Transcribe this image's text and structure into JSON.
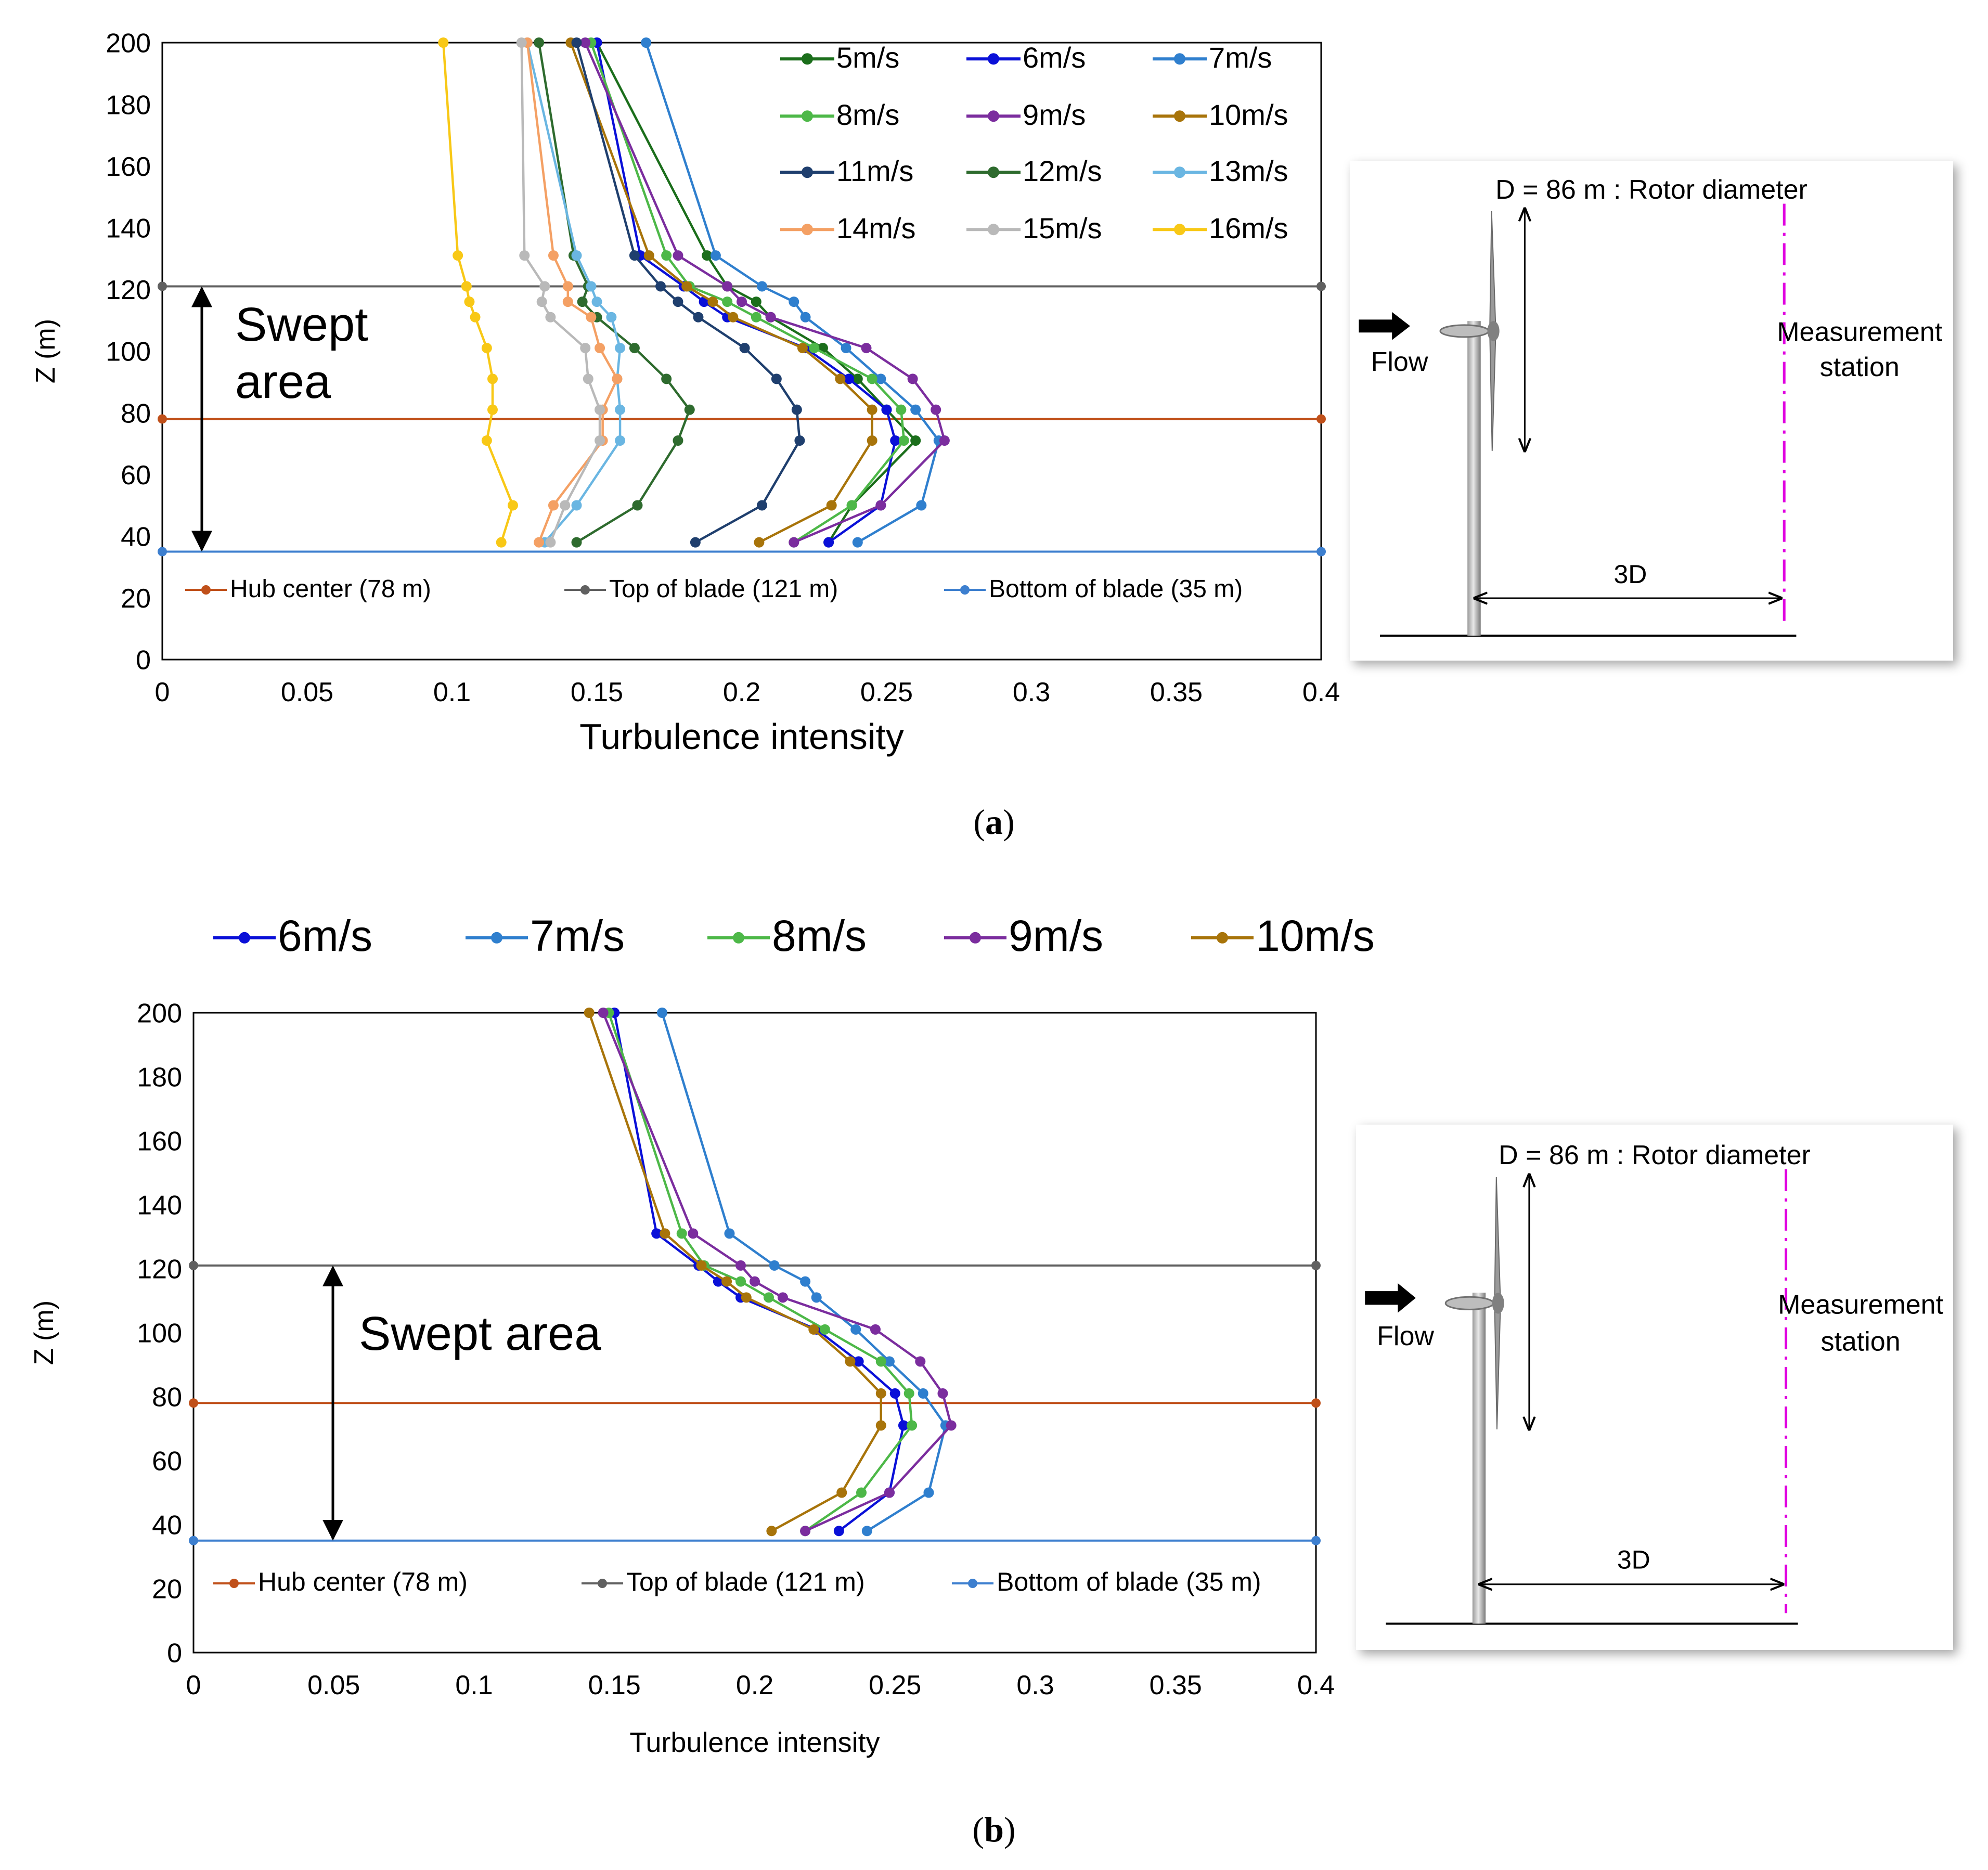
{
  "panels": [
    {
      "label": "a",
      "chart_data": {
        "type": "line",
        "xlabel": "Turbulence intensity",
        "ylabel": "Z (m)",
        "xlim": [
          0,
          0.4
        ],
        "ylim": [
          0,
          200
        ],
        "xticks": [
          "0",
          "0.05",
          "0.1",
          "0.15",
          "0.2",
          "0.25",
          "0.3",
          "0.35",
          "0.4"
        ],
        "yticks": [
          "0",
          "20",
          "40",
          "60",
          "80",
          "100",
          "120",
          "140",
          "160",
          "180",
          "200"
        ],
        "annotation": "Swept area",
        "heights": [
          38,
          50,
          71,
          81,
          91,
          101,
          111,
          116,
          121,
          131,
          200
        ],
        "series": [
          {
            "name": "5m/s",
            "color": "#1b6e1b",
            "values": [
              0.23,
              0.238,
              0.26,
              0.25,
              0.24,
              0.228,
              0.21,
              0.205,
              0.195,
              0.188,
              0.15
            ]
          },
          {
            "name": "6m/s",
            "color": "#0a10d8",
            "values": [
              0.23,
              0.248,
              0.253,
              0.25,
              0.237,
              0.222,
              0.195,
              0.187,
              0.18,
              0.165,
              0.15
            ]
          },
          {
            "name": "7m/s",
            "color": "#2f7fce",
            "values": [
              0.24,
              0.262,
              0.268,
              0.26,
              0.248,
              0.236,
              0.222,
              0.218,
              0.207,
              0.191,
              0.167
            ]
          },
          {
            "name": "8m/s",
            "color": "#4db848",
            "values": [
              0.218,
              0.238,
              0.256,
              0.255,
              0.245,
              0.225,
              0.205,
              0.195,
              0.182,
              0.174,
              0.148
            ]
          },
          {
            "name": "9m/s",
            "color": "#7b2d9e",
            "values": [
              0.218,
              0.248,
              0.27,
              0.267,
              0.259,
              0.243,
              0.21,
              0.2,
              0.195,
              0.178,
              0.146
            ]
          },
          {
            "name": "10m/s",
            "color": "#a8740a",
            "values": [
              0.206,
              0.231,
              0.245,
              0.245,
              0.234,
              0.221,
              0.197,
              0.19,
              0.181,
              0.168,
              0.141
            ]
          },
          {
            "name": "11m/s",
            "color": "#1f3f6e",
            "values": [
              0.184,
              0.207,
              0.22,
              0.219,
              0.212,
              0.201,
              0.185,
              0.178,
              0.172,
              0.163,
              0.143
            ]
          },
          {
            "name": "12m/s",
            "color": "#2e6b2e",
            "values": [
              0.143,
              0.164,
              0.178,
              0.182,
              0.174,
              0.163,
              0.15,
              0.145,
              0.147,
              0.142,
              0.13
            ]
          },
          {
            "name": "13m/s",
            "color": "#6ab6e2",
            "values": [
              0.132,
              0.143,
              0.158,
              0.158,
              0.157,
              0.158,
              0.155,
              0.15,
              0.148,
              0.143,
              0.126
            ]
          },
          {
            "name": "14m/s",
            "color": "#f4a064",
            "values": [
              0.13,
              0.135,
              0.152,
              0.152,
              0.157,
              0.151,
              0.148,
              0.14,
              0.14,
              0.135,
              0.126
            ]
          },
          {
            "name": "15m/s",
            "color": "#b9b9b9",
            "values": [
              0.134,
              0.139,
              0.151,
              0.151,
              0.147,
              0.146,
              0.134,
              0.131,
              0.132,
              0.125,
              0.124
            ]
          },
          {
            "name": "16m/s",
            "color": "#f8c816",
            "values": [
              0.117,
              0.121,
              0.112,
              0.114,
              0.114,
              0.112,
              0.108,
              0.106,
              0.105,
              0.102,
              0.097
            ]
          }
        ],
        "reference_lines": [
          {
            "name": "Hub center (78 m)",
            "value": 78,
            "color": "#c0501a"
          },
          {
            "name": "Top of blade (121 m)",
            "value": 121,
            "color": "#606060"
          },
          {
            "name": "Bottom of blade (35 m)",
            "value": 35,
            "color": "#3d7fcf"
          }
        ]
      },
      "diagram": {
        "title": "D = 86 m : Rotor diameter",
        "flow": "Flow",
        "station_line1": "Measurement",
        "station_line2": "station",
        "distance": "3D",
        "station_color": "#e000e0"
      }
    },
    {
      "label": "b",
      "chart_data": {
        "type": "line",
        "xlabel": "Turbulence intensity",
        "ylabel": "Z (m)",
        "xlim": [
          0,
          0.4
        ],
        "ylim": [
          0,
          200
        ],
        "xticks": [
          "0",
          "0.05",
          "0.1",
          "0.15",
          "0.2",
          "0.25",
          "0.3",
          "0.35",
          "0.4"
        ],
        "yticks": [
          "0",
          "20",
          "40",
          "60",
          "80",
          "100",
          "120",
          "140",
          "160",
          "180",
          "200"
        ],
        "annotation": "Swept area",
        "heights": [
          38,
          50,
          71,
          81,
          91,
          101,
          111,
          116,
          121,
          131,
          200
        ],
        "series": [
          {
            "name": "6m/s",
            "color": "#0a10d8",
            "values": [
              0.23,
              0.248,
              0.253,
              0.25,
              0.237,
              0.222,
              0.195,
              0.187,
              0.18,
              0.165,
              0.15
            ]
          },
          {
            "name": "7m/s",
            "color": "#2f7fce",
            "values": [
              0.24,
              0.262,
              0.268,
              0.26,
              0.248,
              0.236,
              0.222,
              0.218,
              0.207,
              0.191,
              0.167
            ]
          },
          {
            "name": "8m/s",
            "color": "#4db848",
            "values": [
              0.218,
              0.238,
              0.256,
              0.255,
              0.245,
              0.225,
              0.205,
              0.195,
              0.182,
              0.174,
              0.148
            ]
          },
          {
            "name": "9m/s",
            "color": "#7b2d9e",
            "values": [
              0.218,
              0.248,
              0.27,
              0.267,
              0.259,
              0.243,
              0.21,
              0.2,
              0.195,
              0.178,
              0.146
            ]
          },
          {
            "name": "10m/s",
            "color": "#a8740a",
            "values": [
              0.206,
              0.231,
              0.245,
              0.245,
              0.234,
              0.221,
              0.197,
              0.19,
              0.181,
              0.168,
              0.141
            ]
          }
        ],
        "reference_lines": [
          {
            "name": "Hub center (78 m)",
            "value": 78,
            "color": "#c0501a"
          },
          {
            "name": "Top of blade (121 m)",
            "value": 121,
            "color": "#606060"
          },
          {
            "name": "Bottom of blade (35 m)",
            "value": 35,
            "color": "#3d7fcf"
          }
        ]
      },
      "diagram": {
        "title": "D = 86 m : Rotor diameter",
        "flow": "Flow",
        "station_line1": "Measurement",
        "station_line2": "station",
        "distance": "3D",
        "station_color": "#e000e0"
      }
    }
  ]
}
